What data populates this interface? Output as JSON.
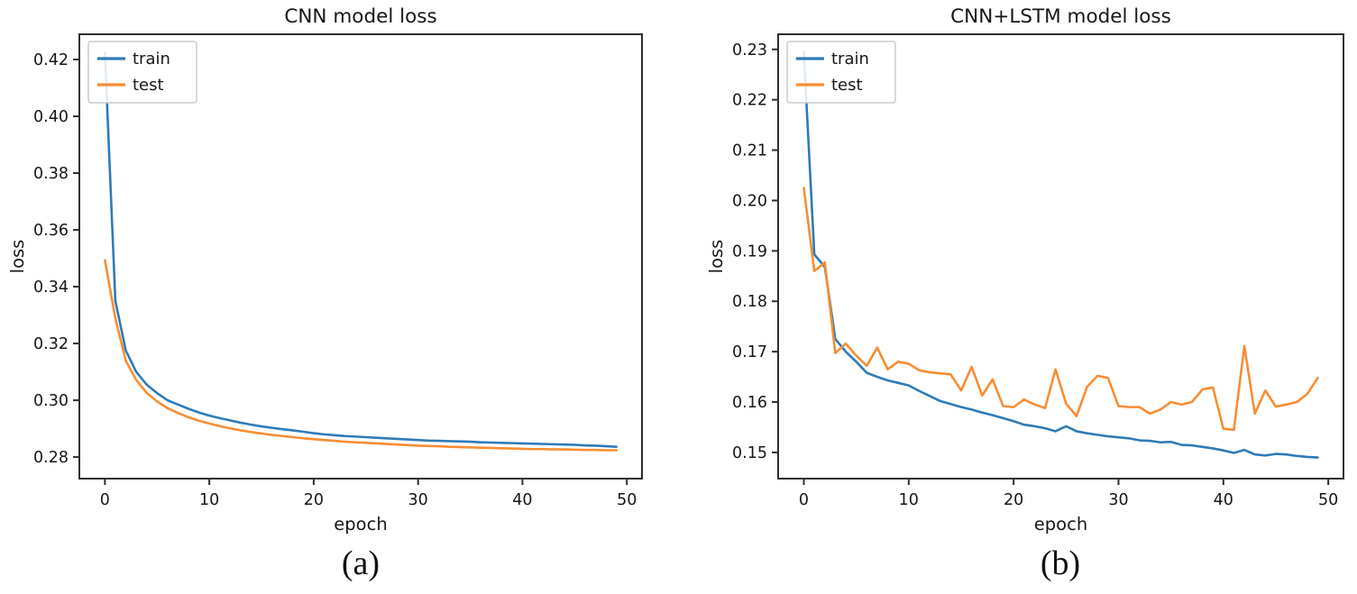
{
  "figure": {
    "background": "#ffffff",
    "spine_color": "#2f2f2f",
    "text_color": "#171717",
    "legend_border_color": "#cccccc",
    "legend_bg": "#ffffff"
  },
  "chart_data": [
    {
      "type": "line",
      "title": "CNN model loss",
      "xlabel": "epoch",
      "ylabel": "loss",
      "caption": "(a)",
      "legend_position": "upper left",
      "grid": false,
      "xlim": [
        -2.45,
        51.45
      ],
      "ylim": [
        0.2724,
        0.4289
      ],
      "xticks": [
        0,
        10,
        20,
        30,
        40,
        50
      ],
      "yticks": [
        0.28,
        0.3,
        0.32,
        0.34,
        0.36,
        0.38,
        0.4,
        0.42
      ],
      "x": [
        0,
        1,
        2,
        3,
        4,
        5,
        6,
        7,
        8,
        9,
        10,
        11,
        12,
        13,
        14,
        15,
        16,
        17,
        18,
        19,
        20,
        21,
        22,
        23,
        24,
        25,
        26,
        27,
        28,
        29,
        30,
        31,
        32,
        33,
        34,
        35,
        36,
        37,
        38,
        39,
        40,
        41,
        42,
        43,
        44,
        45,
        46,
        47,
        48,
        49
      ],
      "series": [
        {
          "name": "train",
          "color": "#2e7bb8",
          "values": [
            0.4225,
            0.335,
            0.3175,
            0.31,
            0.3055,
            0.3025,
            0.3,
            0.2985,
            0.297,
            0.2957,
            0.2946,
            0.2937,
            0.2929,
            0.2921,
            0.2914,
            0.2908,
            0.2903,
            0.2898,
            0.2894,
            0.2889,
            0.2884,
            0.288,
            0.2877,
            0.2874,
            0.2872,
            0.287,
            0.2868,
            0.2866,
            0.2864,
            0.2862,
            0.286,
            0.2858,
            0.2857,
            0.2856,
            0.2855,
            0.2854,
            0.2852,
            0.2851,
            0.285,
            0.2849,
            0.2848,
            0.2847,
            0.2846,
            0.2845,
            0.2844,
            0.2843,
            0.2841,
            0.284,
            0.2838,
            0.2836
          ]
        },
        {
          "name": "test",
          "color": "#f88d33",
          "values": [
            0.3493,
            0.3288,
            0.3139,
            0.3071,
            0.3026,
            0.2996,
            0.2972,
            0.2955,
            0.294,
            0.2928,
            0.2918,
            0.2909,
            0.2901,
            0.2894,
            0.2888,
            0.2883,
            0.2878,
            0.2874,
            0.287,
            0.2866,
            0.2863,
            0.286,
            0.2857,
            0.2854,
            0.2852,
            0.285,
            0.2848,
            0.2846,
            0.2844,
            0.2842,
            0.284,
            0.2839,
            0.2838,
            0.2836,
            0.2835,
            0.2834,
            0.2833,
            0.2832,
            0.2831,
            0.283,
            0.2829,
            0.2828,
            0.2828,
            0.2827,
            0.2827,
            0.2826,
            0.2825,
            0.2825,
            0.2824,
            0.2824
          ]
        }
      ]
    },
    {
      "type": "line",
      "title": "CNN+LSTM model loss",
      "xlabel": "epoch",
      "ylabel": "loss",
      "caption": "(b)",
      "legend_position": "upper left",
      "grid": false,
      "xlim": [
        -2.45,
        51.45
      ],
      "ylim": [
        0.1448,
        0.233
      ],
      "xticks": [
        0,
        10,
        20,
        30,
        40,
        50
      ],
      "yticks": [
        0.15,
        0.16,
        0.17,
        0.18,
        0.19,
        0.2,
        0.21,
        0.22,
        0.23
      ],
      "x": [
        0,
        1,
        2,
        3,
        4,
        5,
        6,
        7,
        8,
        9,
        10,
        11,
        12,
        13,
        14,
        15,
        16,
        17,
        18,
        19,
        20,
        21,
        22,
        23,
        24,
        25,
        26,
        27,
        28,
        29,
        30,
        31,
        32,
        33,
        34,
        35,
        36,
        37,
        38,
        39,
        40,
        41,
        42,
        43,
        44,
        45,
        46,
        47,
        48,
        49
      ],
      "series": [
        {
          "name": "train",
          "color": "#2e7bb8",
          "values": [
            0.2295,
            0.1893,
            0.1868,
            0.1725,
            0.17,
            0.168,
            0.1658,
            0.165,
            0.1643,
            0.1638,
            0.1633,
            0.1622,
            0.1612,
            0.1602,
            0.1596,
            0.159,
            0.1585,
            0.1579,
            0.1574,
            0.1568,
            0.1562,
            0.1555,
            0.1552,
            0.1548,
            0.1542,
            0.1552,
            0.1542,
            0.1538,
            0.1535,
            0.1532,
            0.153,
            0.1528,
            0.1524,
            0.1523,
            0.152,
            0.1521,
            0.1515,
            0.1514,
            0.1511,
            0.1508,
            0.1504,
            0.1499,
            0.1505,
            0.1496,
            0.1494,
            0.1497,
            0.1496,
            0.1493,
            0.1491,
            0.149
          ]
        },
        {
          "name": "test",
          "color": "#f88d33",
          "values": [
            0.2025,
            0.186,
            0.1877,
            0.1697,
            0.1716,
            0.1692,
            0.1672,
            0.1708,
            0.1665,
            0.168,
            0.1676,
            0.1663,
            0.1659,
            0.1657,
            0.1655,
            0.1623,
            0.167,
            0.1613,
            0.1645,
            0.1592,
            0.159,
            0.1605,
            0.1595,
            0.1588,
            0.1665,
            0.1597,
            0.1572,
            0.163,
            0.1652,
            0.1648,
            0.1592,
            0.159,
            0.159,
            0.1577,
            0.1585,
            0.16,
            0.1595,
            0.16,
            0.1625,
            0.1629,
            0.1547,
            0.1545,
            0.1711,
            0.1577,
            0.1623,
            0.1591,
            0.1595,
            0.16,
            0.1616,
            0.1648
          ]
        }
      ]
    }
  ]
}
